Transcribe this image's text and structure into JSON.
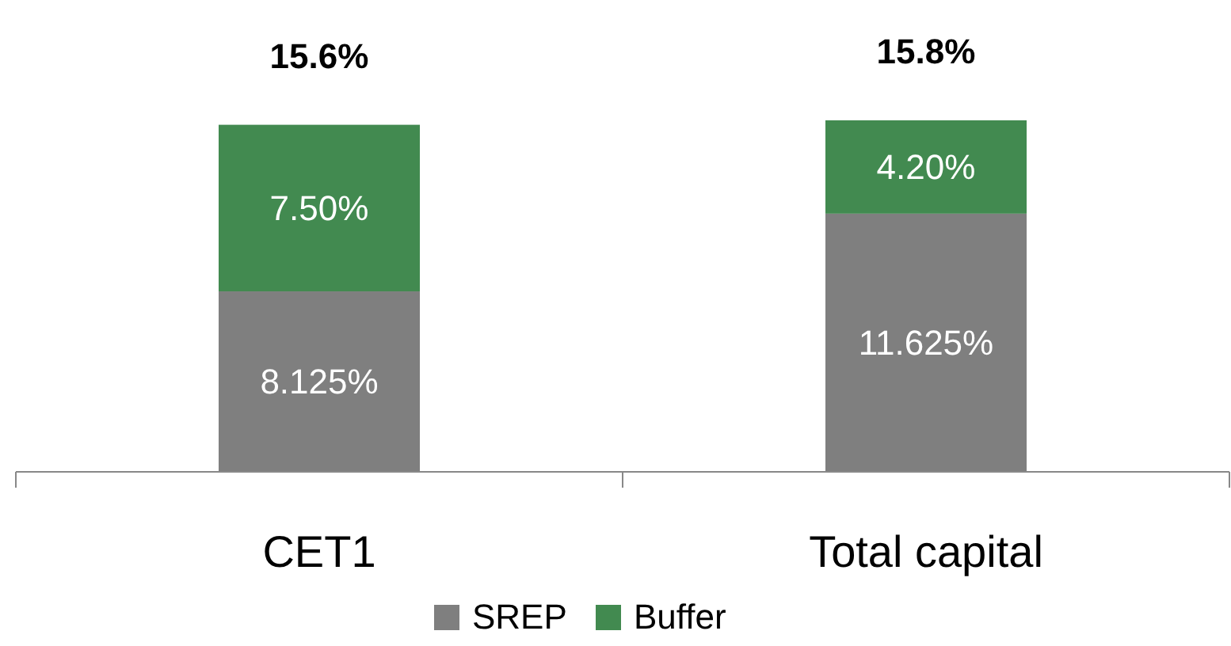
{
  "chart_data": {
    "type": "bar",
    "stacked": true,
    "categories": [
      "CET1",
      "Total capital"
    ],
    "series": [
      {
        "name": "SREP",
        "color": "#7f7f7f",
        "values": [
          8.125,
          11.625
        ],
        "value_labels": [
          "8.125%",
          "11.625%"
        ]
      },
      {
        "name": "Buffer",
        "color": "#428a50",
        "values": [
          7.5,
          4.2
        ],
        "value_labels": [
          "7.50%",
          "4.20%"
        ]
      }
    ],
    "totals": [
      "15.6%",
      "15.8%"
    ],
    "legend": "bottom"
  }
}
